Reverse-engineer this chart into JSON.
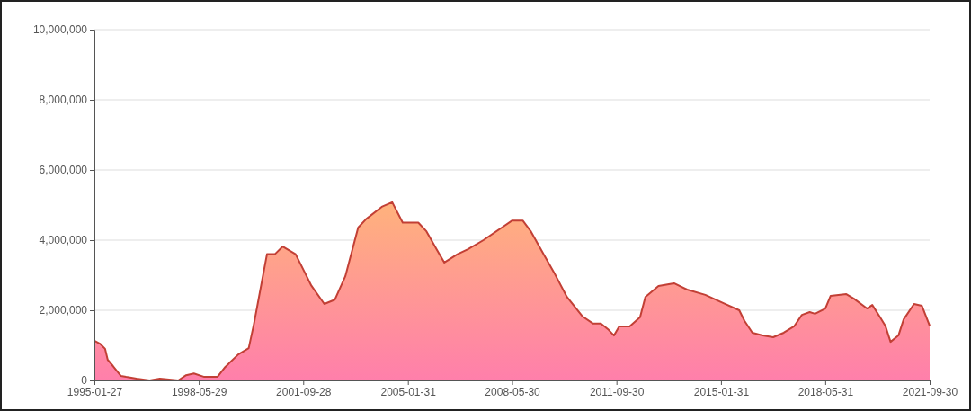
{
  "chart_data": {
    "type": "area",
    "x": [
      "1995-01-27",
      "1995-04",
      "1995-06",
      "1995-07",
      "1995-09",
      "1995-12",
      "1996-02",
      "1996-06",
      "1996-11",
      "1997-03",
      "1997-10",
      "1998-01",
      "1998-04",
      "1998-08",
      "1999-01",
      "1999-04",
      "1999-09",
      "2000-01",
      "2000-03",
      "2000-06",
      "2000-08",
      "2000-11",
      "2001-02",
      "2001-07",
      "2001-10",
      "2002-01",
      "2002-06",
      "2002-10",
      "2003-02",
      "2003-07",
      "2003-10",
      "2004-04",
      "2004-08",
      "2004-12",
      "2005-06",
      "2005-09",
      "2006-01",
      "2006-04",
      "2006-09",
      "2007-01",
      "2007-07",
      "2008-02",
      "2008-06",
      "2008-10",
      "2009-01",
      "2009-06",
      "2009-10",
      "2010-03",
      "2010-09",
      "2011-01",
      "2011-04",
      "2011-07",
      "2011-09",
      "2011-11",
      "2012-03",
      "2012-07",
      "2012-09",
      "2013-02",
      "2013-08",
      "2014-01",
      "2014-08",
      "2015-03",
      "2015-09",
      "2015-11",
      "2016-02",
      "2016-06",
      "2016-10",
      "2017-02",
      "2017-06",
      "2017-09",
      "2017-12",
      "2018-02",
      "2018-06",
      "2018-08",
      "2019-02",
      "2019-05",
      "2019-10",
      "2019-12",
      "2020-03",
      "2020-05",
      "2020-07",
      "2020-10",
      "2020-12",
      "2021-04",
      "2021-07",
      "2021-09-30"
    ],
    "series": [
      {
        "color": "#c23f35",
        "values": [
          1130000,
          1050000,
          900000,
          590000,
          410000,
          130000,
          100000,
          50000,
          0,
          50000,
          0,
          150000,
          200000,
          100000,
          100000,
          380000,
          740000,
          920000,
          1600000,
          2800000,
          3600000,
          3600000,
          3820000,
          3600000,
          3150000,
          2700000,
          2180000,
          2300000,
          2970000,
          4360000,
          4600000,
          4950000,
          5080000,
          4500000,
          4500000,
          4260000,
          3740000,
          3360000,
          3600000,
          3740000,
          4000000,
          4360000,
          4560000,
          4560000,
          4260000,
          3600000,
          3080000,
          2380000,
          1820000,
          1620000,
          1620000,
          1440000,
          1280000,
          1540000,
          1540000,
          1800000,
          2380000,
          2690000,
          2770000,
          2590000,
          2440000,
          2200000,
          2000000,
          1700000,
          1360000,
          1280000,
          1230000,
          1360000,
          1540000,
          1870000,
          1950000,
          1900000,
          2050000,
          2410000,
          2460000,
          2330000,
          2050000,
          2150000,
          1800000,
          1560000,
          1100000,
          1280000,
          1740000,
          2180000,
          2130000,
          1560000
        ]
      }
    ],
    "xlim": [
      "1995-01-27",
      "2021-09-30"
    ],
    "xticks": [
      "1995-01-27",
      "1998-05-29",
      "2001-09-28",
      "2005-01-31",
      "2008-05-30",
      "2011-09-30",
      "2015-01-31",
      "2018-05-31",
      "2021-09-30"
    ],
    "ylim": [
      0,
      10000000
    ],
    "yticks": [
      0,
      {
        "value": 2000000,
        "label": "2,000,000"
      },
      {
        "value": 4000000,
        "label": "4,000,000"
      },
      {
        "value": 6000000,
        "label": "6,000,000"
      },
      {
        "value": 8000000,
        "label": "8,000,000"
      },
      {
        "value": 10000000,
        "label": "10,000,000"
      }
    ],
    "grid": "y"
  }
}
